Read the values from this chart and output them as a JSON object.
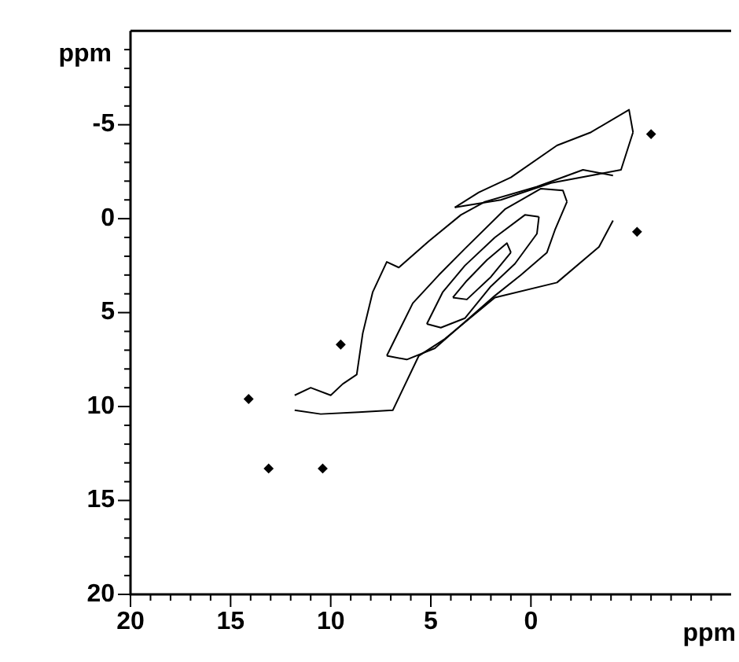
{
  "chart_data": {
    "type": "line",
    "xlabel": "ppm",
    "ylabel": "ppm",
    "xlim": [
      20,
      -10
    ],
    "ylim": [
      20,
      -10
    ],
    "xticks": [
      20,
      {
        "value": 19,
        "label": null
      },
      {
        "value": 18,
        "label": null
      },
      {
        "value": 17,
        "label": null
      },
      {
        "value": 16,
        "label": null
      },
      15,
      {
        "value": 14,
        "label": null
      },
      {
        "value": 13,
        "label": null
      },
      {
        "value": 12,
        "label": null
      },
      {
        "value": 11,
        "label": null
      },
      10,
      {
        "value": 9,
        "label": null
      },
      {
        "value": 8,
        "label": null
      },
      {
        "value": 7,
        "label": null
      },
      {
        "value": 6,
        "label": null
      },
      5,
      {
        "value": 4,
        "label": null
      },
      {
        "value": 3,
        "label": null
      },
      {
        "value": 2,
        "label": null
      },
      {
        "value": 1,
        "label": null
      },
      0,
      {
        "value": -1,
        "label": null
      },
      {
        "value": -2,
        "label": null
      },
      {
        "value": -3,
        "label": null
      },
      {
        "value": -4,
        "label": null
      },
      {
        "value": -5,
        "label": null
      },
      {
        "value": -6,
        "label": null
      },
      {
        "value": -7,
        "label": null
      },
      {
        "value": -8,
        "label": null
      },
      {
        "value": -9,
        "label": null
      }
    ],
    "yticks": [
      20,
      {
        "value": 19,
        "label": null
      },
      {
        "value": 18,
        "label": null
      },
      {
        "value": 17,
        "label": null
      },
      {
        "value": 16,
        "label": null
      },
      15,
      {
        "value": 14,
        "label": null
      },
      {
        "value": 13,
        "label": null
      },
      {
        "value": 12,
        "label": null
      },
      {
        "value": 11,
        "label": null
      },
      10,
      {
        "value": 9,
        "label": null
      },
      {
        "value": 8,
        "label": null
      },
      {
        "value": 7,
        "label": null
      },
      {
        "value": 6,
        "label": null
      },
      5,
      {
        "value": 4,
        "label": null
      },
      {
        "value": 3,
        "label": null
      },
      {
        "value": 2,
        "label": null
      },
      {
        "value": 1,
        "label": null
      },
      0,
      {
        "value": -1,
        "label": null
      },
      {
        "value": -2,
        "label": null
      },
      {
        "value": -3,
        "label": null
      },
      {
        "value": -4,
        "label": null
      },
      -5,
      {
        "value": -6,
        "label": null
      },
      {
        "value": -7,
        "label": null
      },
      {
        "value": -8,
        "label": null
      },
      {
        "value": -9,
        "label": null
      }
    ],
    "grid": false,
    "legend": false,
    "marker": "none",
    "line_style": "solid",
    "series": [
      {
        "color": "#000000",
        "x": [
          1.0,
          1.2,
          2.2,
          3.2,
          3.9
        ],
        "values": [
          1.8,
          1.3,
          2.2,
          3.3,
          4.2
        ]
      },
      {
        "color": "#000000",
        "x": [
          1.0,
          2.0,
          3.2,
          3.9
        ],
        "values": [
          1.8,
          3.1,
          4.3,
          4.2
        ]
      },
      {
        "color": "#000000",
        "x": [
          -0.4,
          0.3,
          1.8,
          3.3,
          4.4,
          5.2
        ],
        "values": [
          -0.1,
          -0.2,
          1.0,
          2.5,
          3.9,
          5.6
        ]
      },
      {
        "color": "#000000",
        "x": [
          -0.4,
          -0.3,
          0.8,
          2.0,
          3.3,
          4.5,
          5.2
        ],
        "values": [
          -0.1,
          0.8,
          2.4,
          3.6,
          5.3,
          5.8,
          5.6
        ]
      },
      {
        "color": "#000000",
        "x": [
          -1.8,
          -1.6,
          -0.5,
          1.3,
          3.3,
          4.6,
          5.9,
          6.6,
          7.2
        ],
        "values": [
          -0.9,
          -1.5,
          -1.6,
          -0.5,
          1.6,
          3.0,
          4.5,
          6.0,
          7.3
        ]
      },
      {
        "color": "#000000",
        "x": [
          -1.8,
          -1.2,
          -0.8,
          0.5,
          1.8,
          3.3,
          4.8,
          6.2,
          7.2
        ],
        "values": [
          -0.9,
          0.6,
          1.8,
          3.0,
          4.1,
          5.5,
          6.9,
          7.5,
          7.3
        ]
      },
      {
        "color": "#000000",
        "x": [
          -4.1,
          -3.4,
          -1.3,
          1.8,
          4.3,
          5.6,
          6.9,
          8.6,
          10.5,
          11.8
        ],
        "values": [
          0.1,
          1.5,
          3.4,
          4.2,
          6.4,
          7.3,
          10.2,
          10.3,
          10.4,
          10.2
        ]
      },
      {
        "color": "#000000",
        "x": [
          -4.1,
          -2.6,
          -0.3,
          2.3,
          3.5,
          5.1,
          6.6,
          7.2,
          7.9,
          8.4,
          8.7,
          9.4,
          10.0,
          11.0,
          11.8
        ],
        "values": [
          -2.3,
          -2.6,
          -1.7,
          -0.9,
          -0.2,
          1.2,
          2.6,
          2.3,
          3.9,
          6.1,
          8.3,
          8.8,
          9.4,
          9.0,
          9.4
        ]
      },
      {
        "color": "#000000",
        "x": [
          -5.1,
          -4.9,
          -3.0,
          -1.3,
          1.0,
          2.6,
          3.8
        ],
        "values": [
          -4.6,
          -5.8,
          -4.6,
          -3.9,
          -2.2,
          -1.4,
          -0.6
        ]
      },
      {
        "color": "#000000",
        "x": [
          -5.1,
          -4.5,
          -3.0,
          -1.0,
          1.5,
          3.8
        ],
        "values": [
          -4.6,
          -2.6,
          -2.3,
          -1.9,
          -1.0,
          -0.6
        ]
      },
      {
        "type": "scatter",
        "marker": "diamond",
        "color": "#000000",
        "x": [
          14.1,
          13.1,
          10.4,
          9.5,
          -5.3,
          -6.0
        ],
        "values": [
          9.6,
          13.3,
          13.3,
          6.7,
          0.7,
          -4.5
        ]
      }
    ]
  }
}
